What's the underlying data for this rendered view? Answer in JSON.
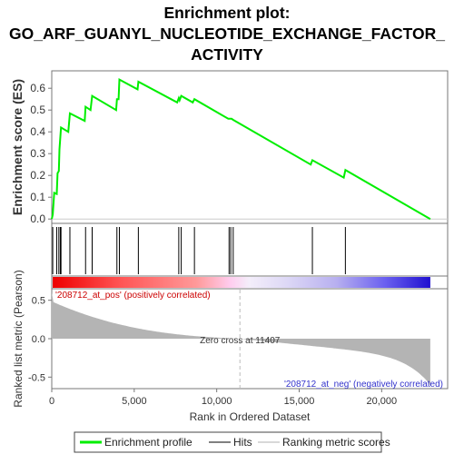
{
  "title_lines": [
    "Enrichment plot:",
    "GO_ARF_GUANYL_NUCLEOTIDE_EXCHANGE_FACTOR_",
    "ACTIVITY"
  ],
  "chart_data": {
    "type": "line",
    "es_panel": {
      "ylabel": "Enrichment score (ES)",
      "ylim": [
        -0.02,
        0.68
      ],
      "yticks": [
        0.0,
        0.1,
        0.2,
        0.3,
        0.4,
        0.5,
        0.6
      ],
      "series_name": "Enrichment profile",
      "color": "#00ee00",
      "points": [
        [
          0,
          0.0
        ],
        [
          60,
          0.02
        ],
        [
          150,
          0.12
        ],
        [
          300,
          0.115
        ],
        [
          350,
          0.21
        ],
        [
          430,
          0.22
        ],
        [
          470,
          0.32
        ],
        [
          560,
          0.42
        ],
        [
          1000,
          0.4
        ],
        [
          1100,
          0.485
        ],
        [
          2000,
          0.45
        ],
        [
          2050,
          0.515
        ],
        [
          2350,
          0.5
        ],
        [
          2450,
          0.565
        ],
        [
          3900,
          0.5
        ],
        [
          3950,
          0.55
        ],
        [
          4050,
          0.55
        ],
        [
          4100,
          0.64
        ],
        [
          5200,
          0.595
        ],
        [
          5250,
          0.63
        ],
        [
          7600,
          0.535
        ],
        [
          7700,
          0.555
        ],
        [
          7750,
          0.545
        ],
        [
          7850,
          0.565
        ],
        [
          8550,
          0.535
        ],
        [
          8650,
          0.55
        ],
        [
          10700,
          0.46
        ],
        [
          10900,
          0.46
        ],
        [
          11000,
          0.455
        ],
        [
          15700,
          0.25
        ],
        [
          15800,
          0.27
        ],
        [
          17700,
          0.19
        ],
        [
          17800,
          0.225
        ],
        [
          22950,
          0.0
        ]
      ]
    },
    "hits": [
      60,
      300,
      430,
      520,
      560,
      1100,
      2050,
      2450,
      3950,
      4100,
      5250,
      7700,
      7850,
      8650,
      10750,
      10850,
      11000,
      15800,
      17800
    ],
    "ranked_panel": {
      "ylabel": "Ranked list metric (Pearson)",
      "xlabel": "Rank in Ordered Dataset",
      "xlim": [
        0,
        24000
      ],
      "xticks": [
        0,
        5000,
        10000,
        15000,
        20000
      ],
      "ylim": [
        -0.65,
        0.65
      ],
      "yticks": [
        -0.5,
        0.0,
        0.5
      ],
      "zero_cross": 11407,
      "zero_cross_label": "Zero cross at 11407",
      "pos_label": "'208712_at_pos' (positively correlated)",
      "neg_label": "'208712_at_neg' (negatively correlated)",
      "n_genes": 22950
    },
    "legend": {
      "placement": "bottom",
      "items": [
        {
          "label": "Enrichment profile",
          "color": "#00ee00"
        },
        {
          "label": "Hits",
          "color": "#808080"
        },
        {
          "label": "Ranking metric scores",
          "color": "#d8d8d8"
        }
      ]
    },
    "colors": {
      "axis": "#777777",
      "pos_text": "#cc0000",
      "neg_text": "#3333cc",
      "zero_line": "#bbbbbb",
      "metric_fill": "#b4b4b4",
      "heat_red": "#ff0000",
      "heat_blue": "#0000ff"
    }
  }
}
